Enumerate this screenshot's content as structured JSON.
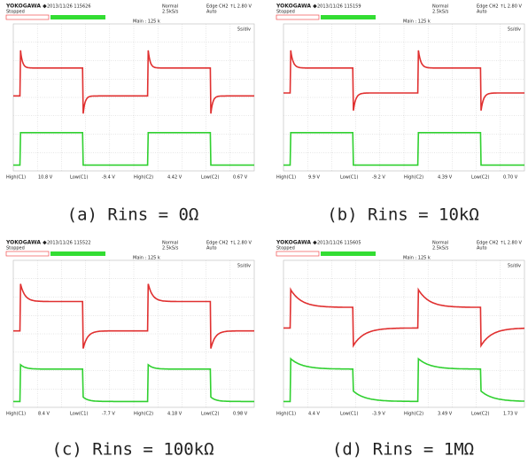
{
  "panels": [
    {
      "header": {
        "brand": "YOKOGAWA ◆",
        "timestamp": "2013/11/26 115626",
        "status": "Stopped",
        "mode": "Normal",
        "rate": "2.5kS/s",
        "trigger": "Edge CH2 ↑L 2.80 V",
        "trigger_mode": "Auto",
        "main": "Main : 125 k",
        "timebase": "5s/div"
      },
      "measurements": [
        [
          "High(C1)",
          "10.8 V"
        ],
        [
          "Low(C1)",
          "-9.4 V"
        ],
        [
          "High(C2)",
          "4.42 V"
        ],
        [
          "Low(C2)",
          "0.67 V"
        ]
      ],
      "caption": "(a) Rins = 0Ω"
    },
    {
      "header": {
        "brand": "YOKOGAWA ◆",
        "timestamp": "2013/11/26 115159",
        "status": "Stopped",
        "mode": "Normal",
        "rate": "2.5kS/s",
        "trigger": "Edge CH2 ↑L 2.80 V",
        "trigger_mode": "Auto",
        "main": "Main : 125 k",
        "timebase": "5s/div"
      },
      "measurements": [
        [
          "High(C1)",
          "9.9 V"
        ],
        [
          "Low(C1)",
          "-9.2 V"
        ],
        [
          "High(C2)",
          "4.39 V"
        ],
        [
          "Low(C2)",
          "0.70 V"
        ]
      ],
      "caption": "(b) Rins = 10kΩ"
    },
    {
      "header": {
        "brand": "YOKOGAWA ◆",
        "timestamp": "2013/11/26 115522",
        "status": "Stopped",
        "mode": "Normal",
        "rate": "2.5kS/s",
        "trigger": "Edge CH2 ↑L 2.80 V",
        "trigger_mode": "Auto",
        "main": "Main : 125 k",
        "timebase": "5s/div"
      },
      "measurements": [
        [
          "High(C1)",
          "8.4 V"
        ],
        [
          "Low(C1)",
          "-7.7 V"
        ],
        [
          "High(C2)",
          "4.18 V"
        ],
        [
          "Low(C2)",
          "0.98 V"
        ]
      ],
      "caption": "(c) Rins = 100kΩ"
    },
    {
      "header": {
        "brand": "YOKOGAWA ◆",
        "timestamp": "2013/11/26 115605",
        "status": "Stopped",
        "mode": "Normal",
        "rate": "2.5kS/s",
        "trigger": "Edge CH2 ↑L 2.80 V",
        "trigger_mode": "Auto",
        "main": "Main : 125 k",
        "timebase": "5s/div"
      },
      "measurements": [
        [
          "High(C1)",
          "4.4 V"
        ],
        [
          "Low(C1)",
          "-3.9 V"
        ],
        [
          "High(C2)",
          "3.49 V"
        ],
        [
          "Low(C2)",
          "1.73 V"
        ]
      ],
      "caption": "(d) Rins = 1MΩ"
    }
  ]
}
